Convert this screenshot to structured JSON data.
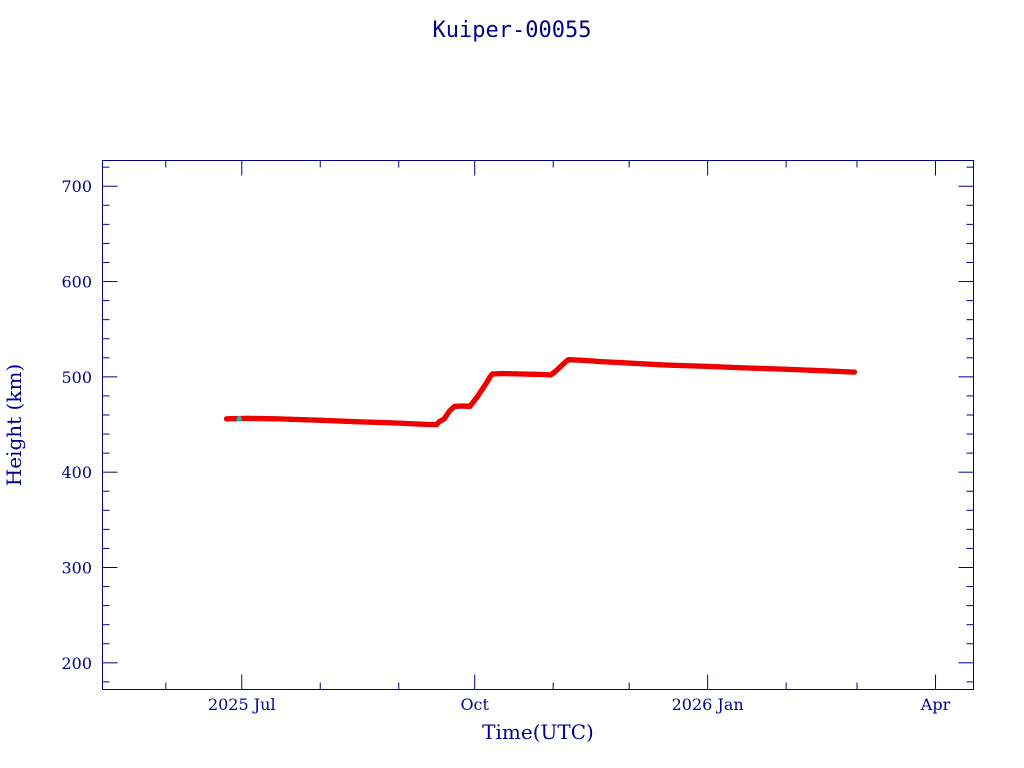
{
  "chart_data": {
    "type": "scatter",
    "title": "Kuiper-00055",
    "xlabel": "Time(UTC)",
    "ylabel": "Height (km)",
    "ylim": [
      172,
      727
    ],
    "xlim": [
      "2025-05-07",
      "2026-04-16"
    ],
    "y_ticks": [
      200,
      300,
      400,
      500,
      600,
      700
    ],
    "y_minor_step": 20,
    "x_ticks": [
      {
        "date": "2025-07-01",
        "label": "2025 Jul"
      },
      {
        "date": "2025-10-01",
        "label": "Oct"
      },
      {
        "date": "2026-01-01",
        "label": "2026 Jan"
      },
      {
        "date": "2026-04-01",
        "label": "Apr"
      }
    ],
    "x_minor_ticks": [
      "2025-06-01",
      "2025-08-01",
      "2025-09-01",
      "2025-11-01",
      "2025-12-01",
      "2026-02-01",
      "2026-03-01"
    ],
    "grid": false,
    "series": [
      {
        "color": "#ee0000",
        "points": [
          [
            "2025-06-25",
            456
          ],
          [
            "2025-07-03",
            456.5
          ],
          [
            "2025-07-15",
            456
          ],
          [
            "2025-08-01",
            454.5
          ],
          [
            "2025-08-15",
            453
          ],
          [
            "2025-09-01",
            451.5
          ],
          [
            "2025-09-13",
            450
          ],
          [
            "2025-09-16",
            450
          ],
          [
            "2025-09-17",
            453
          ],
          [
            "2025-09-19",
            456
          ],
          [
            "2025-09-21",
            464
          ],
          [
            "2025-09-23",
            469
          ],
          [
            "2025-09-26",
            469.5
          ],
          [
            "2025-09-29",
            469
          ],
          [
            "2025-09-30",
            472
          ],
          [
            "2025-10-02",
            479
          ],
          [
            "2025-10-04",
            487
          ],
          [
            "2025-10-06",
            495
          ],
          [
            "2025-10-07",
            500
          ],
          [
            "2025-10-08",
            503
          ],
          [
            "2025-10-12",
            503.5
          ],
          [
            "2025-10-20",
            503
          ],
          [
            "2025-10-28",
            502.5
          ],
          [
            "2025-10-31",
            502
          ],
          [
            "2025-11-02",
            506
          ],
          [
            "2025-11-04",
            511
          ],
          [
            "2025-11-06",
            516
          ],
          [
            "2025-11-07",
            518
          ],
          [
            "2025-11-12",
            517.5
          ],
          [
            "2025-11-20",
            516
          ],
          [
            "2025-12-01",
            514.5
          ],
          [
            "2025-12-15",
            512.5
          ],
          [
            "2026-01-01",
            511
          ],
          [
            "2026-01-15",
            509.5
          ],
          [
            "2026-02-01",
            508
          ],
          [
            "2026-02-15",
            506.5
          ],
          [
            "2026-02-28",
            505
          ]
        ]
      },
      {
        "color": "#00c0c0",
        "points": [
          [
            "2025-06-30",
            456
          ]
        ]
      }
    ]
  }
}
